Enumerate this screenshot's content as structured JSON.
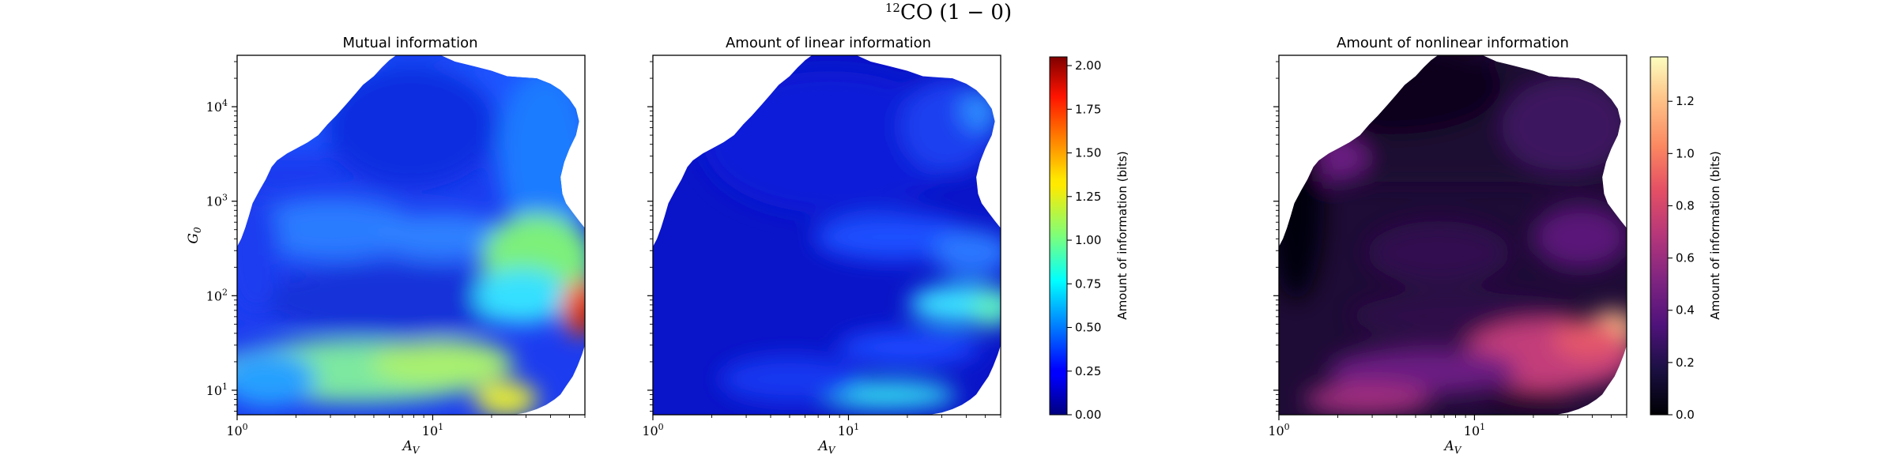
{
  "suptitle": {
    "superscript": "12",
    "main": "CO (1 − 0)"
  },
  "chart_data": [
    {
      "type": "heatmap",
      "title": "Mutual information",
      "xlabel": "A_V",
      "xlabel_main": "A",
      "xlabel_sub": "V",
      "ylabel": "G_0",
      "ylabel_main": "G",
      "ylabel_sub": "0",
      "xscale": "log",
      "yscale": "log",
      "xlim": [
        1,
        60
      ],
      "ylim": [
        5.5,
        35000
      ],
      "x_ticks": [
        {
          "value": 1,
          "base": "10",
          "exp": "0"
        },
        {
          "value": 10,
          "base": "10",
          "exp": "1"
        }
      ],
      "y_ticks": [
        {
          "value": 10,
          "base": "10",
          "exp": "1"
        },
        {
          "value": 100,
          "base": "10",
          "exp": "2"
        },
        {
          "value": 1000,
          "base": "10",
          "exp": "3"
        },
        {
          "value": 10000,
          "base": "10",
          "exp": "4"
        }
      ],
      "colormap": "jet",
      "colorbar": "shared-with-next",
      "value_range": [
        0,
        2.05
      ]
    },
    {
      "type": "heatmap",
      "title": "Amount of linear information",
      "xlabel": "A_V",
      "xlabel_main": "A",
      "xlabel_sub": "V",
      "xscale": "log",
      "yscale": "log",
      "xlim": [
        1,
        60
      ],
      "ylim": [
        5.5,
        35000
      ],
      "x_ticks": [
        {
          "value": 1,
          "base": "10",
          "exp": "0"
        },
        {
          "value": 10,
          "base": "10",
          "exp": "1"
        }
      ],
      "colormap": "jet",
      "colorbar": {
        "label": "Amount of information (bits)",
        "range": [
          0,
          2.05
        ],
        "ticks": [
          "0.00",
          "0.25",
          "0.50",
          "0.75",
          "1.00",
          "1.25",
          "1.50",
          "1.75",
          "2.00"
        ],
        "tick_values": [
          0,
          0.25,
          0.5,
          0.75,
          1.0,
          1.25,
          1.5,
          1.75,
          2.0
        ]
      }
    },
    {
      "type": "heatmap",
      "title": "Amount of nonlinear information",
      "xlabel": "A_V",
      "xlabel_main": "A",
      "xlabel_sub": "V",
      "xscale": "log",
      "yscale": "log",
      "xlim": [
        1,
        60
      ],
      "ylim": [
        5.5,
        35000
      ],
      "x_ticks": [
        {
          "value": 1,
          "base": "10",
          "exp": "0"
        },
        {
          "value": 10,
          "base": "10",
          "exp": "1"
        }
      ],
      "colormap": "magma",
      "colorbar": {
        "label": "Amount of information (bits)",
        "range": [
          0,
          1.37
        ],
        "ticks": [
          "0.0",
          "0.2",
          "0.4",
          "0.6",
          "0.8",
          "1.0",
          "1.2"
        ],
        "tick_values": [
          0,
          0.2,
          0.4,
          0.6,
          0.8,
          1.0,
          1.2
        ]
      }
    }
  ]
}
